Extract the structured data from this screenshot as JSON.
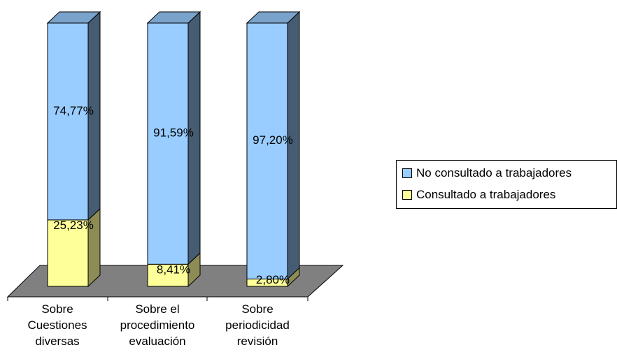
{
  "chart_data": {
    "type": "bar",
    "stacked": true,
    "three_d": true,
    "categories": [
      [
        "Sobre",
        "Cuestiones",
        "diversas"
      ],
      [
        "Sobre el",
        "procedimiento",
        "evaluación"
      ],
      [
        "Sobre",
        "periodicidad",
        "revisión"
      ]
    ],
    "series": [
      {
        "name": "Consultado a trabajadores",
        "values": [
          25.23,
          8.41,
          2.8
        ],
        "labels": [
          "25,23%",
          "8,41%",
          "2,80%"
        ],
        "color": "#ffff99"
      },
      {
        "name": "No consultado a trabajadores",
        "values": [
          74.77,
          91.59,
          97.2
        ],
        "labels": [
          "74,77%",
          "91,59%",
          "97,20%"
        ],
        "color": "#99ccff"
      }
    ],
    "ylim": [
      0,
      100
    ],
    "legend_position": "right",
    "legend_order": [
      "No consultado a trabajadores",
      "Consultado a trabajadores"
    ],
    "floor_color": "#808080"
  }
}
